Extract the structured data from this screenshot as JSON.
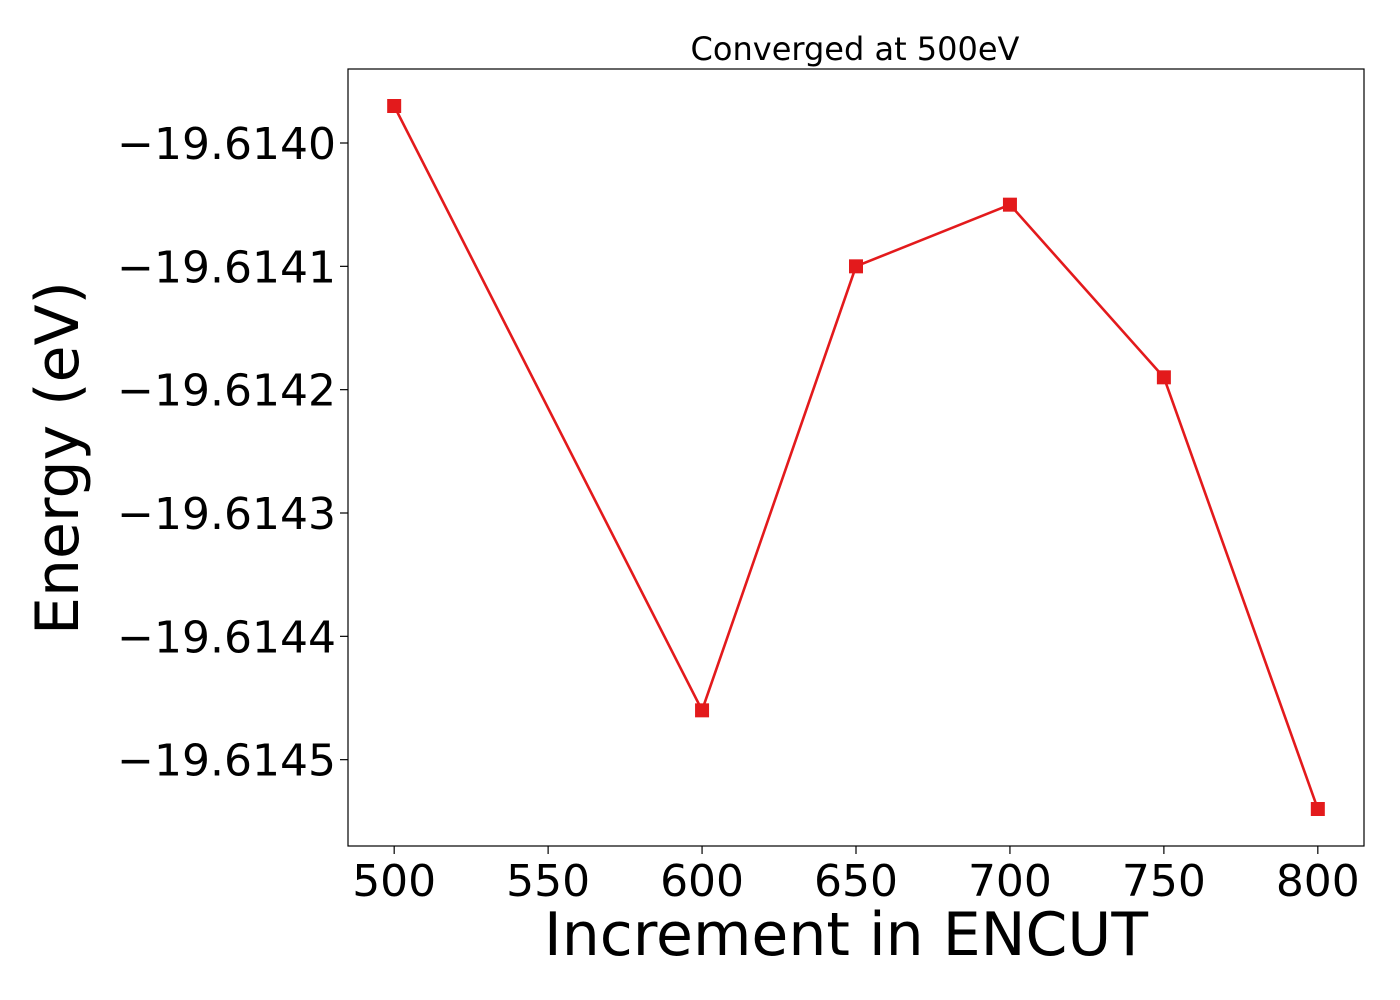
{
  "chart_data": {
    "type": "line",
    "title": "Converged at 500eV",
    "xlabel": "Increment in ENCUT",
    "ylabel": "Energy (eV)",
    "xlim": [
      485,
      815
    ],
    "ylim": [
      -19.61457,
      -19.61394
    ],
    "xticks": [
      500,
      550,
      600,
      650,
      700,
      750,
      800
    ],
    "yticks": [
      -19.614,
      -19.6141,
      -19.6142,
      -19.6143,
      -19.6144,
      -19.6145
    ],
    "ytick_labels": [
      "−19.6140",
      "−19.6141",
      "−19.6142",
      "−19.6143",
      "−19.6144",
      "−19.6145"
    ],
    "grid": false,
    "series": [
      {
        "color": "#e31a1c",
        "marker": "square",
        "x": [
          500,
          600,
          650,
          700,
          750,
          800
        ],
        "y": [
          -19.61397,
          -19.61446,
          -19.6141,
          -19.61405,
          -19.61419,
          -19.61454
        ]
      }
    ]
  }
}
